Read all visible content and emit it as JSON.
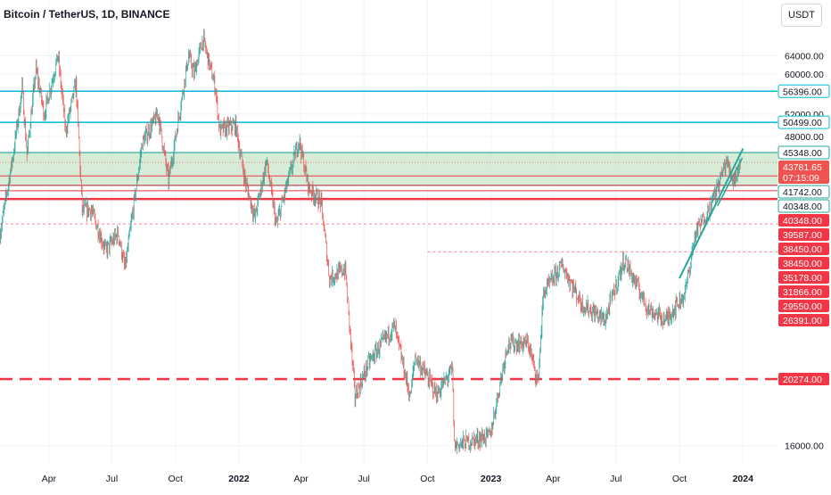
{
  "header": {
    "title": "Bitcoin / TetherUS, 1D, BINANCE",
    "currency_button": "USDT"
  },
  "colors": {
    "up": "#26a69a",
    "down": "#ef5350",
    "zone_fill": "#c8e6c9",
    "zone_border": "#26a69a",
    "cyan_line": "#00bcd4",
    "red_line": "#f23645",
    "dashed_red": "#f23645",
    "grid": "#f0f3fa",
    "axis_text": "#131722",
    "trendline": "#26a69a"
  },
  "chart_data": {
    "type": "candlestick",
    "title": "Bitcoin / TetherUS, 1D, BINANCE",
    "y_scale": "log",
    "ylim": [
      15000,
      78000
    ],
    "xlim": [
      "2021-01-20",
      "2024-02-20"
    ],
    "y_ticks": [
      64000,
      60000,
      52000,
      48000,
      16000
    ],
    "y_tick_labels": [
      "64000.00",
      "60000.00",
      "52000.00",
      "48000.00",
      "16000.00"
    ],
    "x_ticks": [
      {
        "date": "2021-04-01",
        "label": "Apr"
      },
      {
        "date": "2021-07-01",
        "label": "Jul"
      },
      {
        "date": "2021-10-01",
        "label": "Oct"
      },
      {
        "date": "2022-01-01",
        "label": "2022"
      },
      {
        "date": "2022-04-01",
        "label": "Apr"
      },
      {
        "date": "2022-07-01",
        "label": "Jul"
      },
      {
        "date": "2022-10-01",
        "label": "Oct"
      },
      {
        "date": "2023-01-01",
        "label": "2023"
      },
      {
        "date": "2023-04-01",
        "label": "Apr"
      },
      {
        "date": "2023-07-01",
        "label": "Jul"
      },
      {
        "date": "2023-10-01",
        "label": "Oct"
      },
      {
        "date": "2024-01-01",
        "label": "2024"
      }
    ],
    "price_path": [
      [
        "2021-01-20",
        34000
      ],
      [
        "2021-02-08",
        45000
      ],
      [
        "2021-02-21",
        57000
      ],
      [
        "2021-02-28",
        45000
      ],
      [
        "2021-03-13",
        61000
      ],
      [
        "2021-03-25",
        52000
      ],
      [
        "2021-04-14",
        64000
      ],
      [
        "2021-04-25",
        49000
      ],
      [
        "2021-05-10",
        58000
      ],
      [
        "2021-05-19",
        37000
      ],
      [
        "2021-06-01",
        37000
      ],
      [
        "2021-06-22",
        32000
      ],
      [
        "2021-07-10",
        34000
      ],
      [
        "2021-07-20",
        30000
      ],
      [
        "2021-08-14",
        47000
      ],
      [
        "2021-09-06",
        52000
      ],
      [
        "2021-09-21",
        41000
      ],
      [
        "2021-10-20",
        64000
      ],
      [
        "2021-10-28",
        60000
      ],
      [
        "2021-11-10",
        68000
      ],
      [
        "2021-11-28",
        57000
      ],
      [
        "2021-12-04",
        49000
      ],
      [
        "2021-12-27",
        50000
      ],
      [
        "2022-01-10",
        41000
      ],
      [
        "2022-01-24",
        36000
      ],
      [
        "2022-02-10",
        44000
      ],
      [
        "2022-02-24",
        35000
      ],
      [
        "2022-03-29",
        47500
      ],
      [
        "2022-04-12",
        40000
      ],
      [
        "2022-04-30",
        38000
      ],
      [
        "2022-05-12",
        29000
      ],
      [
        "2022-06-04",
        30000
      ],
      [
        "2022-06-18",
        19000
      ],
      [
        "2022-07-08",
        21500
      ],
      [
        "2022-08-14",
        24500
      ],
      [
        "2022-09-06",
        19000
      ],
      [
        "2022-09-13",
        22000
      ],
      [
        "2022-10-15",
        19200
      ],
      [
        "2022-11-06",
        21000
      ],
      [
        "2022-11-09",
        16000
      ],
      [
        "2022-12-31",
        16600
      ],
      [
        "2023-01-25",
        23000
      ],
      [
        "2023-02-24",
        23000
      ],
      [
        "2023-03-10",
        20000
      ],
      [
        "2023-03-18",
        27500
      ],
      [
        "2023-04-14",
        30400
      ],
      [
        "2023-05-12",
        26500
      ],
      [
        "2023-06-15",
        25000
      ],
      [
        "2023-07-13",
        31000
      ],
      [
        "2023-08-17",
        26000
      ],
      [
        "2023-09-11",
        25000
      ],
      [
        "2023-10-09",
        27500
      ],
      [
        "2023-10-24",
        34000
      ],
      [
        "2023-11-15",
        37500
      ],
      [
        "2023-12-08",
        44000
      ],
      [
        "2023-12-18",
        41000
      ],
      [
        "2023-12-29",
        43781.65
      ]
    ],
    "price_levels": [
      {
        "label": "56396.00",
        "value": 56396,
        "style": "cyan-solid"
      },
      {
        "label": "50499.00",
        "value": 50499,
        "style": "cyan-solid"
      },
      {
        "label": "45348.00",
        "value": 45348,
        "style": "zone-top"
      },
      {
        "label": "41742.00",
        "value": 41742,
        "style": "red-thin"
      },
      {
        "label": "40348.00",
        "value": 40348,
        "style": "zone-bottom"
      },
      {
        "label": "40348.00",
        "value": 40348,
        "style": "red-thin"
      },
      {
        "label": "39587.00",
        "value": 39587,
        "style": "red-thin"
      },
      {
        "label": "38450.00",
        "value": 38450,
        "style": "red-thin"
      },
      {
        "label": "38450.00",
        "value": 38450,
        "style": "red-thick"
      },
      {
        "label": "35178.00",
        "value": 35178,
        "style": "red-dotted"
      },
      {
        "label": "31866.00",
        "value": 31866,
        "style": "red-dotted"
      },
      {
        "label": "29550.00",
        "value": 29550,
        "style": "red-label"
      },
      {
        "label": "26391.00",
        "value": 26391,
        "style": "red-label"
      },
      {
        "label": "20274.00",
        "value": 20274,
        "style": "red-dashed-thick"
      }
    ],
    "last_price": {
      "value": 43781.65,
      "label": "43781.65",
      "countdown": "07:15:09"
    },
    "zone": {
      "from": 40348,
      "to": 45348
    },
    "trendline": [
      [
        "2023-10-01",
        29000
      ],
      [
        "2024-01-01",
        46000
      ]
    ],
    "trendline_inner": [
      [
        "2023-11-25",
        37500
      ],
      [
        "2023-12-31",
        44500
      ]
    ]
  }
}
